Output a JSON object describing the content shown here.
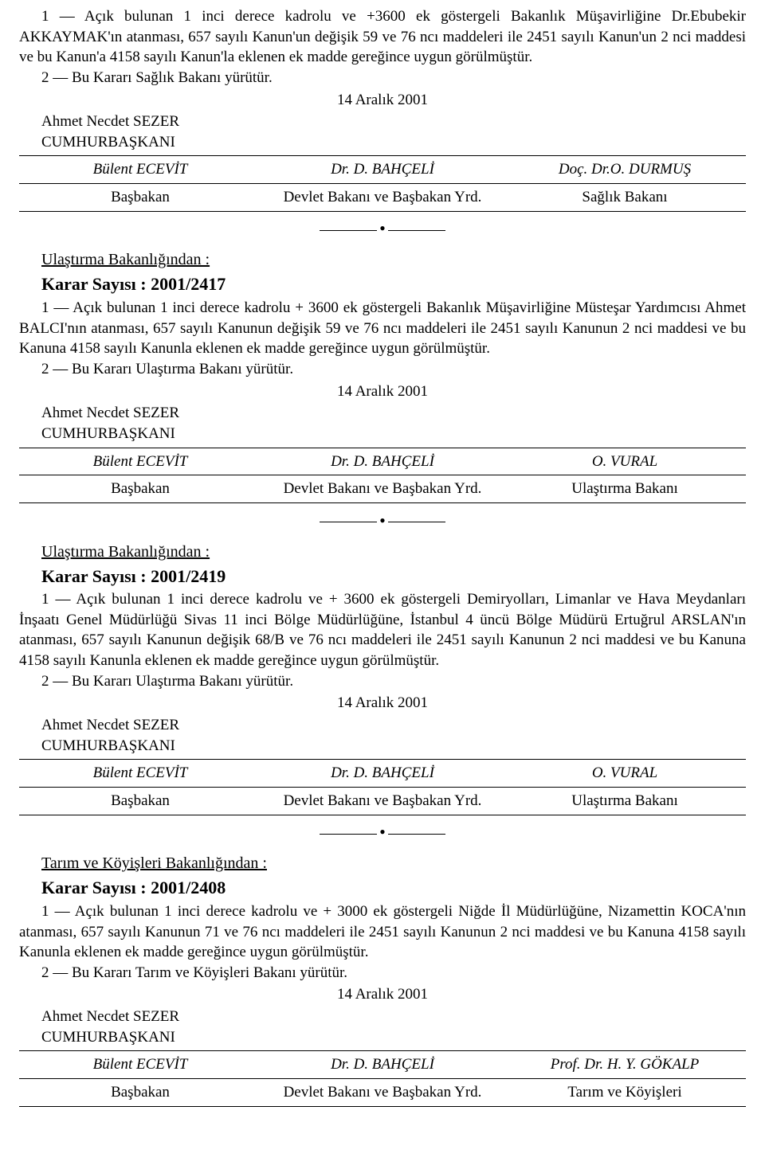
{
  "decrees": [
    {
      "body": "1 — Açık bulunan 1 inci derece kadrolu ve +3600 ek göstergeli Bakanlık Müşavirliğine Dr.Ebubekir AKKAYMAK'ın atanması, 657 sayılı Kanun'un değişik 59 ve 76 ncı maddeleri ile 2451 sayılı Kanun'un 2 nci maddesi ve bu Kanun'a 4158 sayılı Kanun'la eklenen ek madde gereğince uygun görülmüştür.",
      "item2": "2 — Bu Kararı Sağlık Bakanı yürütür.",
      "date": "14 Aralık 2001",
      "president_name": "Ahmet Necdet SEZER",
      "president_title": "CUMHURBAŞKANI",
      "col1_name": "Bülent ECEVİT",
      "col2_name": "Dr. D. BAHÇELİ",
      "col3_name": "Doç. Dr.O. DURMUŞ",
      "col1_title": "Başbakan",
      "col2_title": "Devlet Bakanı ve Başbakan Yrd.",
      "col3_title": "Sağlık Bakanı"
    },
    {
      "ministry": "Ulaştırma Bakanlığından :",
      "karar": "Karar Sayısı : 2001/2417",
      "body": "1 — Açık bulunan 1 inci derece kadrolu + 3600 ek göstergeli Bakanlık Müşavirliğine Müsteşar Yardımcısı Ahmet BALCI'nın atanması, 657 sayılı Kanunun değişik 59 ve 76 ncı maddeleri ile 2451 sayılı Kanunun 2 nci maddesi ve bu Kanuna 4158 sayılı Kanunla eklenen ek madde gereğince uygun görülmüştür.",
      "item2": "2 — Bu Kararı Ulaştırma Bakanı yürütür.",
      "date": "14 Aralık 2001",
      "president_name": "Ahmet Necdet SEZER",
      "president_title": "CUMHURBAŞKANI",
      "col1_name": "Bülent ECEVİT",
      "col2_name": "Dr. D. BAHÇELİ",
      "col3_name": "O. VURAL",
      "col1_title": "Başbakan",
      "col2_title": "Devlet Bakanı ve Başbakan Yrd.",
      "col3_title": "Ulaştırma Bakanı"
    },
    {
      "ministry": "Ulaştırma Bakanlığından :",
      "karar": "Karar Sayısı : 2001/2419",
      "body": "1 — Açık bulunan 1 inci derece kadrolu ve + 3600 ek göstergeli Demiryolları, Limanlar ve Hava Meydanları İnşaatı Genel Müdürlüğü Sivas 11 inci Bölge Müdürlüğüne, İstanbul 4 üncü Bölge Müdürü Ertuğrul ARSLAN'ın atanması, 657 sayılı Kanunun değişik 68/B ve 76 ncı maddeleri ile 2451 sayılı Kanunun 2 nci maddesi ve bu Kanuna 4158 sayılı Kanunla eklenen ek madde gereğince uygun görülmüştür.",
      "item2": "2 — Bu Kararı Ulaştırma Bakanı yürütür.",
      "date": "14 Aralık 2001",
      "president_name": "Ahmet Necdet SEZER",
      "president_title": "CUMHURBAŞKANI",
      "col1_name": "Bülent ECEVİT",
      "col2_name": "Dr. D. BAHÇELİ",
      "col3_name": "O. VURAL",
      "col1_title": "Başbakan",
      "col2_title": "Devlet Bakanı ve Başbakan Yrd.",
      "col3_title": "Ulaştırma Bakanı"
    },
    {
      "ministry": "Tarım ve Köyişleri Bakanlığından :",
      "karar": "Karar Sayısı : 2001/2408",
      "body": "1 — Açık bulunan 1 inci derece kadrolu ve + 3000 ek göstergeli Niğde İl Müdürlüğüne, Nizamettin KOCA'nın atanması, 657 sayılı Kanunun 71 ve 76 ncı maddeleri ile 2451 sayılı Kanunun 2 nci maddesi ve bu Kanuna 4158 sayılı Kanunla eklenen ek madde gereğince uygun görülmüştür.",
      "item2": "2 — Bu Kararı Tarım ve Köyişleri Bakanı yürütür.",
      "date": "14 Aralık 2001",
      "president_name": "Ahmet Necdet SEZER",
      "president_title": "CUMHURBAŞKANI",
      "col1_name": "Bülent ECEVİT",
      "col2_name": "Dr. D. BAHÇELİ",
      "col3_name": "Prof. Dr. H. Y. GÖKALP",
      "col1_title": "Başbakan",
      "col2_title": "Devlet Bakanı ve Başbakan Yrd.",
      "col3_title": "Tarım ve Köyişleri"
    }
  ]
}
